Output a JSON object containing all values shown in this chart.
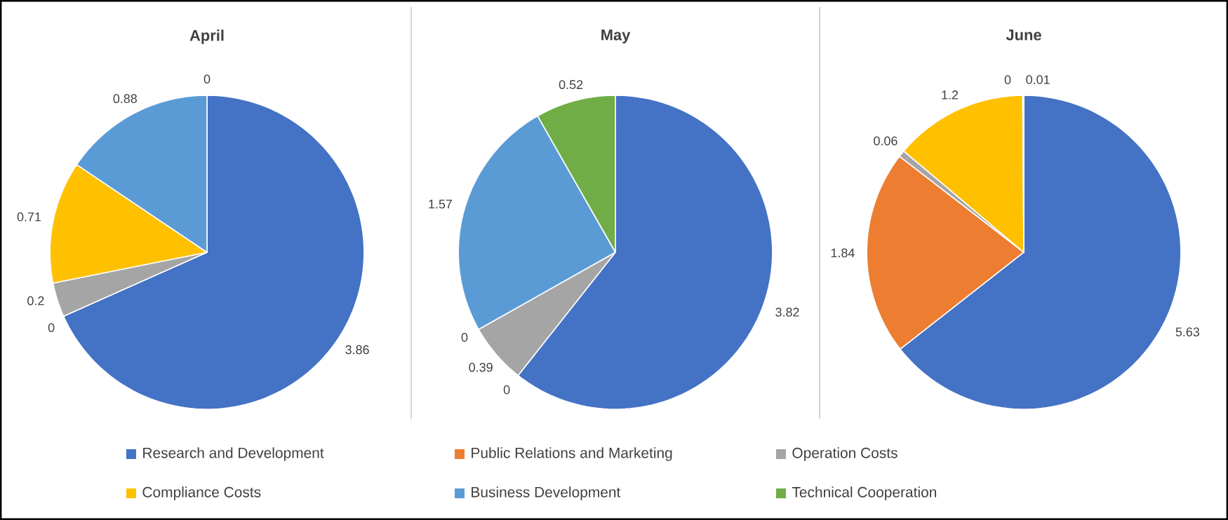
{
  "chart_data": [
    {
      "type": "pie",
      "title": "April",
      "categories": [
        "Research and Development",
        "Public Relations and Marketing",
        "Operation Costs",
        "Compliance Costs",
        "Business Development",
        "Technical Cooperation"
      ],
      "values": [
        3.86,
        0,
        0.2,
        0.71,
        0.88,
        0
      ],
      "value_labels": [
        "3.86",
        "0",
        "0.2",
        "0.71",
        "0.88",
        "0"
      ],
      "colors": [
        "#4472c4",
        "#ed7d31",
        "#a5a5a5",
        "#ffc000",
        "#5b9bd5",
        "#70ad47"
      ],
      "legend": "bottom"
    },
    {
      "type": "pie",
      "title": "May",
      "categories": [
        null,
        null,
        null,
        null,
        null,
        null
      ],
      "values": [
        3.82,
        0,
        0.39,
        0,
        1.57,
        0.52
      ],
      "value_labels": [
        "3.82",
        "0",
        "0.39",
        "0",
        "1.57",
        "0.52"
      ],
      "colors": [
        "#4472c4",
        "#ed7d31",
        "#a5a5a5",
        "#ffc000",
        "#5b9bd5",
        "#70ad47"
      ]
    },
    {
      "type": "pie",
      "title": "June",
      "categories": [
        null,
        null,
        null,
        null,
        null,
        null
      ],
      "values": [
        5.63,
        1.84,
        0.06,
        1.2,
        0,
        0.01
      ],
      "value_labels": [
        "5.63",
        "1.84",
        "0.06",
        "1.2",
        "0",
        "0.01"
      ],
      "colors": [
        "#4472c4",
        "#ed7d31",
        "#a5a5a5",
        "#ffc000",
        "#5b9bd5",
        "#70ad47"
      ]
    }
  ]
}
